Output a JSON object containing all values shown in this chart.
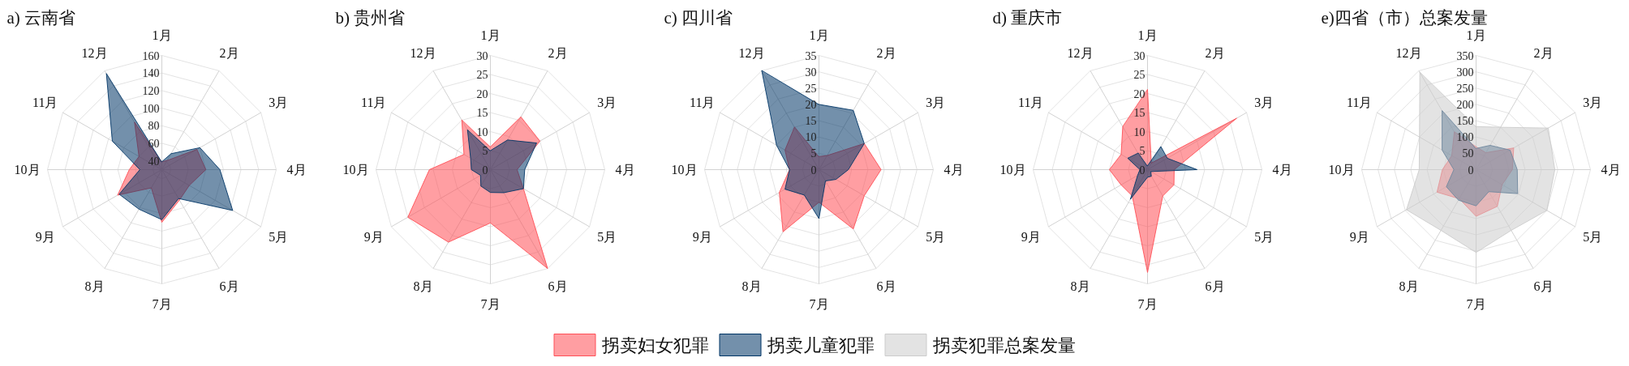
{
  "chart_data": [
    {
      "type": "radar",
      "title": "a) 云南省",
      "categories": [
        "1月",
        "2月",
        "3月",
        "4月",
        "5月",
        "6月",
        "7月",
        "8月",
        "9月",
        "10月",
        "11月",
        "12月"
      ],
      "ylim": [
        30,
        160
      ],
      "yticks": [
        40,
        60,
        80,
        100,
        120,
        140,
        160
      ],
      "grid": true,
      "legend": "bottom",
      "series": [
        {
          "name": "拐卖妇女犯罪",
          "color": "#ff4f56",
          "values": [
            39,
            42,
            76,
            80,
            66,
            70,
            90,
            54,
            88,
            67,
            60,
            92
          ]
        },
        {
          "name": "拐卖儿童犯罪",
          "color": "#003566",
          "values": [
            39,
            51,
            80,
            96,
            123,
            68,
            87,
            82,
            86,
            55,
            95,
            156
          ]
        }
      ]
    },
    {
      "type": "radar",
      "title": "b) 贵州省",
      "categories": [
        "1月",
        "2月",
        "3月",
        "4月",
        "5月",
        "6月",
        "7月",
        "8月",
        "9月",
        "10月",
        "11月",
        "12月"
      ],
      "ylim": [
        0,
        30
      ],
      "yticks": [
        0,
        5,
        10,
        15,
        20,
        25,
        30
      ],
      "grid": true,
      "series": [
        {
          "name": "拐卖妇女犯罪",
          "color": "#ff4f56",
          "values": [
            6,
            16,
            15,
            7,
            10,
            30,
            14,
            22,
            25,
            16,
            8,
            15
          ]
        },
        {
          "name": "拐卖儿童犯罪",
          "color": "#003566",
          "values": [
            5,
            9,
            14,
            9,
            10,
            7,
            6,
            5,
            3,
            5,
            6,
            12
          ]
        }
      ]
    },
    {
      "type": "radar",
      "title": "c) 四川省",
      "categories": [
        "1月",
        "2月",
        "3月",
        "4月",
        "5月",
        "6月",
        "7月",
        "8月",
        "9月",
        "10月",
        "11月",
        "12月"
      ],
      "ylim": [
        0,
        35
      ],
      "yticks": [
        0,
        5,
        10,
        15,
        20,
        25,
        30,
        35
      ],
      "grid": true,
      "series": [
        {
          "name": "拐卖妇女犯罪",
          "color": "#ff4f56",
          "values": [
            4,
            5,
            16,
            19,
            16,
            21,
            10,
            22,
            14,
            9,
            12,
            15
          ]
        },
        {
          "name": "拐卖儿童犯罪",
          "color": "#003566",
          "values": [
            20,
            21,
            16,
            9,
            6,
            4,
            15,
            9,
            12,
            9,
            15,
            35
          ]
        }
      ]
    },
    {
      "type": "radar",
      "title": "d) 重庆市",
      "categories": [
        "1月",
        "2月",
        "3月",
        "4月",
        "5月",
        "6月",
        "7月",
        "8月",
        "9月",
        "10月",
        "11月",
        "12月"
      ],
      "ylim": [
        0,
        30
      ],
      "yticks": [
        0,
        5,
        10,
        15,
        20,
        25,
        30
      ],
      "grid": true,
      "series": [
        {
          "name": "拐卖妇女犯罪",
          "color": "#ff4f56",
          "values": [
            21,
            2,
            27,
            7,
            8,
            8,
            27,
            8,
            8,
            10,
            8,
            13
          ]
        },
        {
          "name": "拐卖儿童犯罪",
          "color": "#003566",
          "values": [
            1,
            7,
            6,
            13,
            1,
            2,
            2,
            9,
            3,
            2,
            6,
            5
          ]
        }
      ]
    },
    {
      "type": "radar",
      "title": "e)四省（市）总案发量",
      "categories": [
        "1月",
        "2月",
        "3月",
        "4月",
        "5月",
        "6月",
        "7月",
        "8月",
        "9月",
        "10月",
        "11月",
        "12月"
      ],
      "ylim": [
        0,
        350
      ],
      "yticks": [
        0,
        50,
        100,
        150,
        200,
        250,
        300,
        350
      ],
      "grid": true,
      "legend": "bottom",
      "series": [
        {
          "name": "拐卖妇女犯罪",
          "color": "#ff4f56",
          "values": [
            70,
            60,
            133,
            111,
            92,
            130,
            143,
            103,
            138,
            103,
            86,
            133
          ]
        },
        {
          "name": "拐卖儿童犯罪",
          "color": "#003566",
          "values": [
            65,
            86,
            120,
            126,
            147,
            78,
            111,
            108,
            105,
            68,
            120,
            208
          ]
        },
        {
          "name": "拐卖犯罪总案发量",
          "color": "#cccccc",
          "values": [
            132,
            150,
            255,
            241,
            250,
            215,
            254,
            215,
            246,
            174,
            200,
            344
          ]
        }
      ]
    }
  ]
}
